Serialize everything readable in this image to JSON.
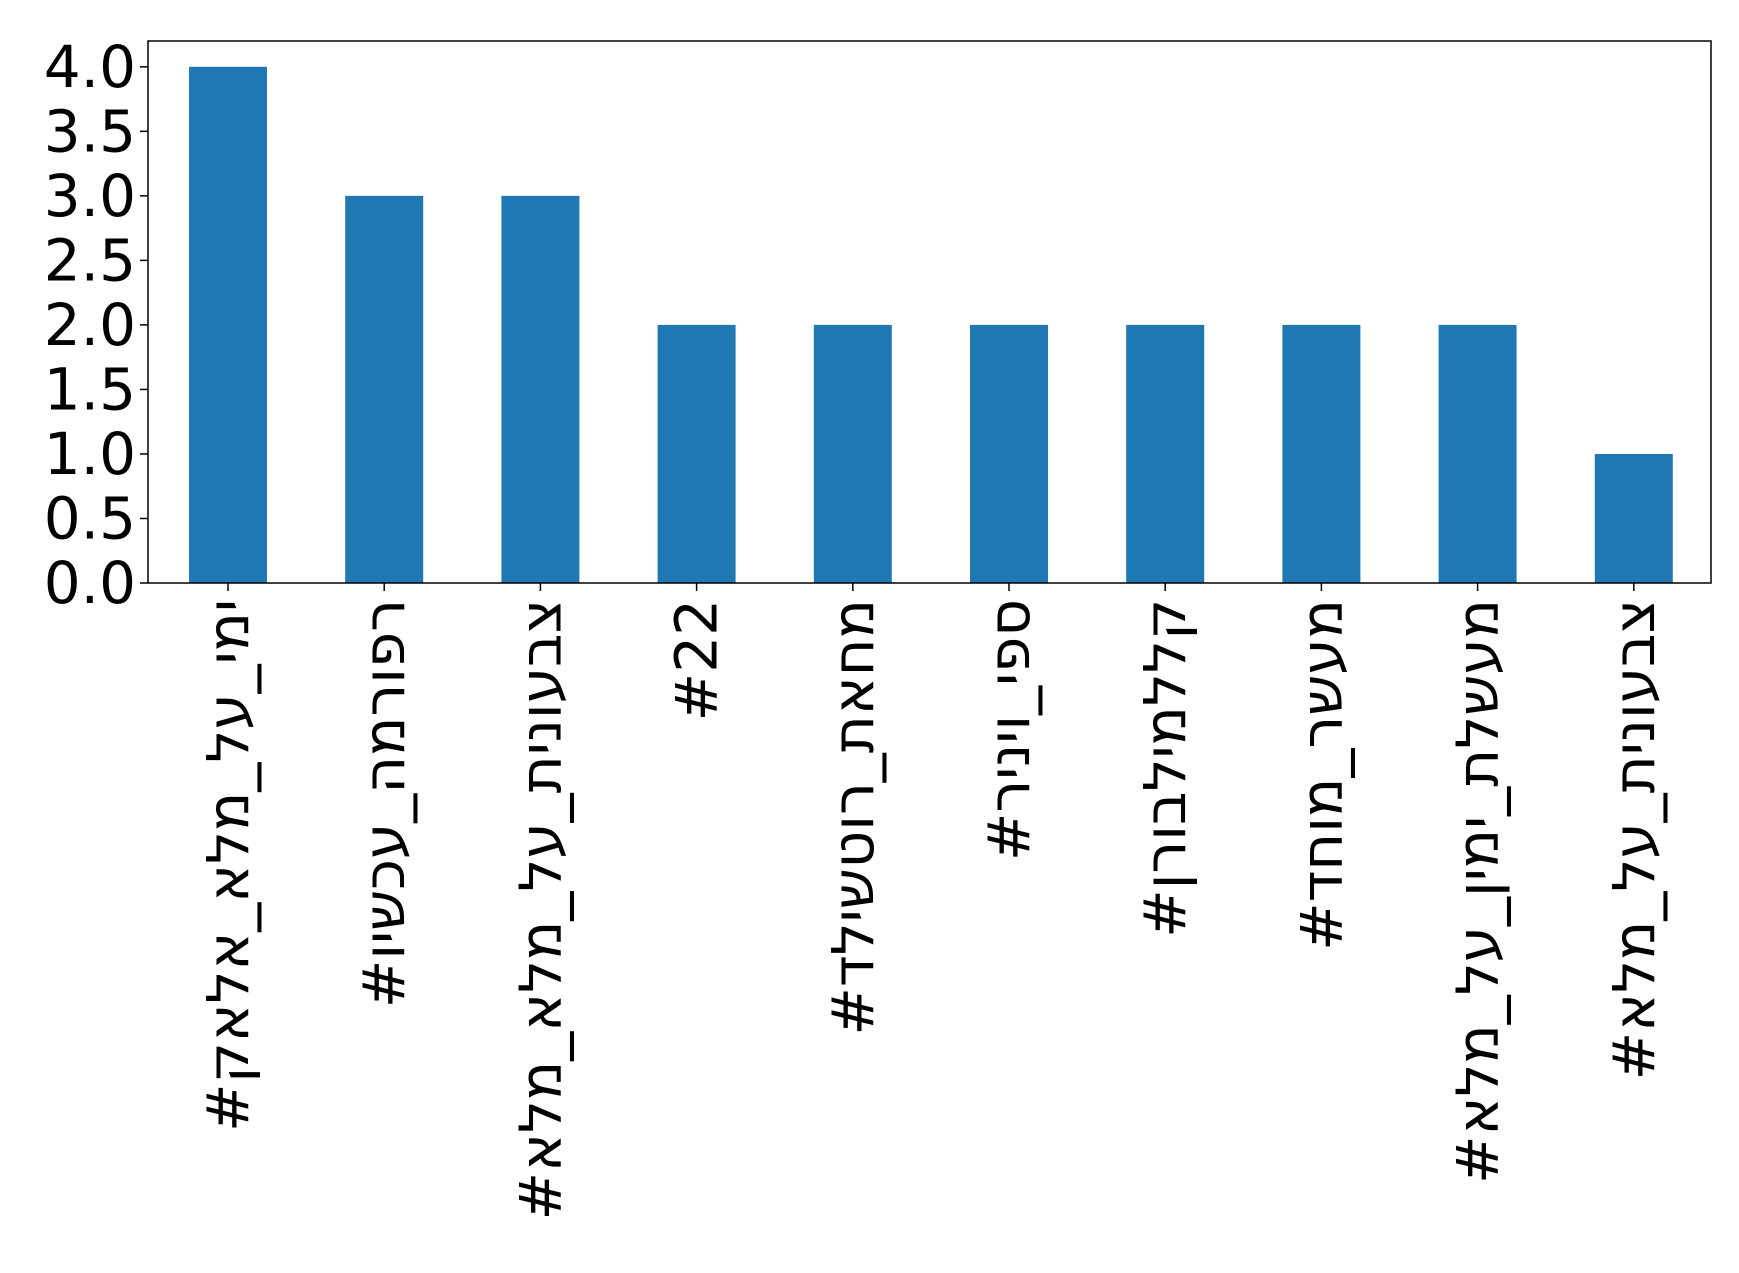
{
  "chart_data": {
    "type": "bar",
    "categories": [
      "#ימי_על_מלא_אלאק",
      "#רפורמה_עכשיו",
      "#צבעונית_על_מלא_מלא",
      "#22",
      "#מחאת_רוטשילד",
      "#ספי_ויניר",
      "#קללמילבורן",
      "#מעשר_מוחד",
      "#מעשלת_ימין_על_מלא",
      "#צבעונית_על_מלא"
    ],
    "values": [
      4,
      3,
      3,
      2,
      2,
      2,
      2,
      2,
      2,
      1
    ],
    "ylim": [
      0,
      4.2
    ],
    "yticks": [
      "0.0",
      "0.5",
      "1.0",
      "1.5",
      "2.0",
      "2.5",
      "3.0",
      "3.5",
      "4.0"
    ],
    "title": "",
    "xlabel": "",
    "ylabel": "",
    "grid": false,
    "colors": {
      "bar": "#1f77b4",
      "axis": "#000000"
    }
  }
}
